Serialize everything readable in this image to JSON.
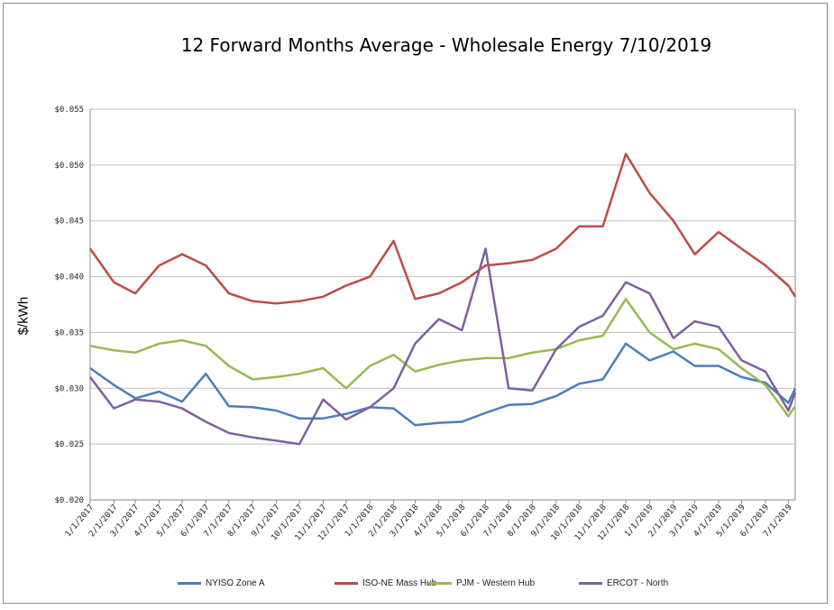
{
  "chart_data": {
    "type": "line",
    "title": "12 Forward Months Average - Wholesale Energy 7/10/2019",
    "ylabel": "$/kWh",
    "xlabel": "",
    "ylim": [
      0.02,
      0.055
    ],
    "y_ticks": [
      "$0.020",
      "$0.025",
      "$0.030",
      "$0.035",
      "$0.040",
      "$0.045",
      "$0.050",
      "$0.055"
    ],
    "x_tick_labels": [
      "1/1/2017",
      "2/1/2017",
      "3/1/2017",
      "4/1/2017",
      "5/1/2017",
      "6/1/2017",
      "7/1/2017",
      "8/1/2017",
      "9/1/2017",
      "10/1/2017",
      "11/1/2017",
      "12/1/2017",
      "1/1/2018",
      "2/1/2018",
      "3/1/2018",
      "4/1/2018",
      "5/1/2018",
      "6/1/2018",
      "7/1/2018",
      "8/1/2018",
      "9/1/2018",
      "10/1/2018",
      "11/1/2018",
      "12/1/2018",
      "1/1/2019",
      "2/1/2019",
      "3/1/2019",
      "4/1/2019",
      "5/1/2019",
      "6/1/2019",
      "7/1/2019"
    ],
    "grid": true,
    "legend_position": "bottom",
    "x": [
      "1/1/2017",
      "2/1/2017",
      "3/1/2017",
      "4/1/2017",
      "5/1/2017",
      "6/1/2017",
      "7/1/2017",
      "8/1/2017",
      "9/1/2017",
      "10/1/2017",
      "11/1/2017",
      "12/1/2017",
      "1/1/2018",
      "2/1/2018",
      "3/1/2018",
      "4/1/2018",
      "5/1/2018",
      "6/1/2018",
      "7/1/2018",
      "8/1/2018",
      "9/1/2018",
      "10/1/2018",
      "11/1/2018",
      "12/1/2018",
      "1/1/2019",
      "2/1/2019",
      "3/1/2019",
      "4/1/2019",
      "5/1/2019",
      "6/1/2019",
      "7/1/2019",
      "7/10/2019"
    ],
    "series": [
      {
        "name": "NYISO Zone A",
        "color": "#4a7ebb",
        "values": [
          0.0318,
          0.0303,
          0.0291,
          0.0297,
          0.0288,
          0.0313,
          0.0284,
          0.0283,
          0.028,
          0.0273,
          0.0273,
          0.0277,
          0.0283,
          0.0282,
          0.0267,
          0.0269,
          0.027,
          0.0278,
          0.0285,
          0.0286,
          0.0293,
          0.0304,
          0.0308,
          0.034,
          0.0325,
          0.0333,
          0.032,
          0.032,
          0.031,
          0.0305,
          0.0287,
          0.03
        ]
      },
      {
        "name": "ISO-NE Mass Hub",
        "color": "#be4b48",
        "values": [
          0.0425,
          0.0395,
          0.0385,
          0.041,
          0.042,
          0.041,
          0.0385,
          0.0378,
          0.0376,
          0.0378,
          0.0382,
          0.0392,
          0.04,
          0.0432,
          0.038,
          0.0385,
          0.0395,
          0.041,
          0.0412,
          0.0415,
          0.0425,
          0.0445,
          0.0445,
          0.051,
          0.0475,
          0.045,
          0.042,
          0.044,
          0.0425,
          0.041,
          0.0392,
          0.0382
        ]
      },
      {
        "name": "PJM - Western Hub",
        "color": "#98b954",
        "values": [
          0.0338,
          0.0334,
          0.0332,
          0.034,
          0.0343,
          0.0338,
          0.032,
          0.0308,
          0.031,
          0.0313,
          0.0318,
          0.03,
          0.032,
          0.033,
          0.0315,
          0.0321,
          0.0325,
          0.0327,
          0.0327,
          0.0332,
          0.0335,
          0.0343,
          0.0347,
          0.038,
          0.035,
          0.0335,
          0.034,
          0.0335,
          0.0318,
          0.0303,
          0.0275,
          0.0284
        ]
      },
      {
        "name": "ERCOT - North",
        "color": "#7d60a0",
        "values": [
          0.031,
          0.0282,
          0.029,
          0.0288,
          0.0282,
          0.027,
          0.026,
          0.0256,
          0.0253,
          0.025,
          0.029,
          0.0272,
          0.0283,
          0.03,
          0.034,
          0.0362,
          0.0352,
          0.0425,
          0.03,
          0.0298,
          0.0335,
          0.0355,
          0.0365,
          0.0395,
          0.0385,
          0.0345,
          0.036,
          0.0355,
          0.0325,
          0.0315,
          0.028,
          0.0296
        ]
      }
    ]
  }
}
